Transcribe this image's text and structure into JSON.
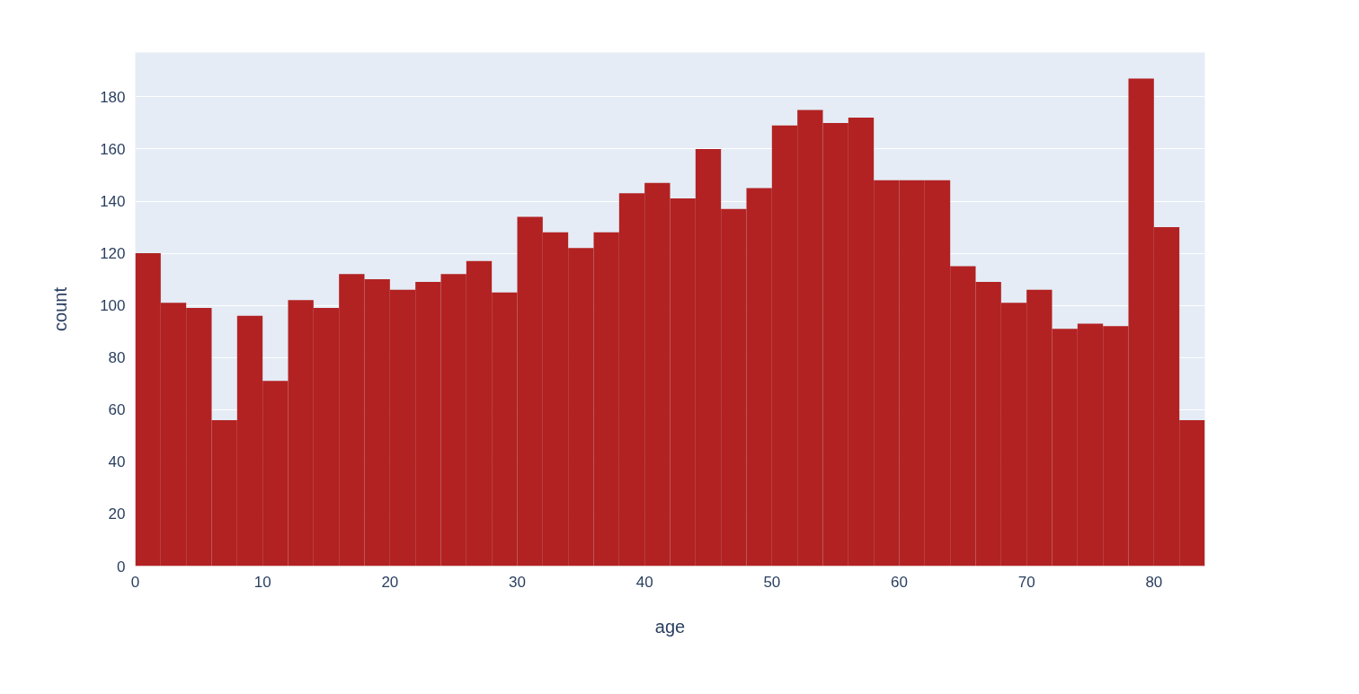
{
  "chart_data": {
    "type": "histogram",
    "xlabel": "age",
    "ylabel": "count",
    "color": "#b22222",
    "bins": [
      0,
      2,
      4,
      6,
      8,
      10,
      12,
      14,
      16,
      18,
      20,
      22,
      24,
      26,
      28,
      30,
      32,
      34,
      36,
      38,
      40,
      42,
      44,
      46,
      48,
      50,
      52,
      54,
      56,
      58,
      60,
      62,
      64,
      66,
      68,
      70,
      72,
      74,
      76,
      78,
      80,
      82,
      84
    ],
    "values": [
      120,
      101,
      99,
      56,
      96,
      71,
      102,
      99,
      112,
      110,
      106,
      109,
      112,
      117,
      105,
      134,
      128,
      122,
      128,
      143,
      147,
      141,
      160,
      137,
      145,
      169,
      175,
      170,
      172,
      148,
      148,
      148,
      115,
      109,
      101,
      106,
      91,
      93,
      92,
      187,
      130,
      56
    ],
    "xlim": [
      0,
      84
    ],
    "ylim": [
      0,
      197
    ],
    "xticks": [
      0,
      10,
      20,
      30,
      40,
      50,
      60,
      70,
      80
    ],
    "yticks": [
      0,
      20,
      40,
      60,
      80,
      100,
      120,
      140,
      160,
      180
    ],
    "grid": "y"
  }
}
